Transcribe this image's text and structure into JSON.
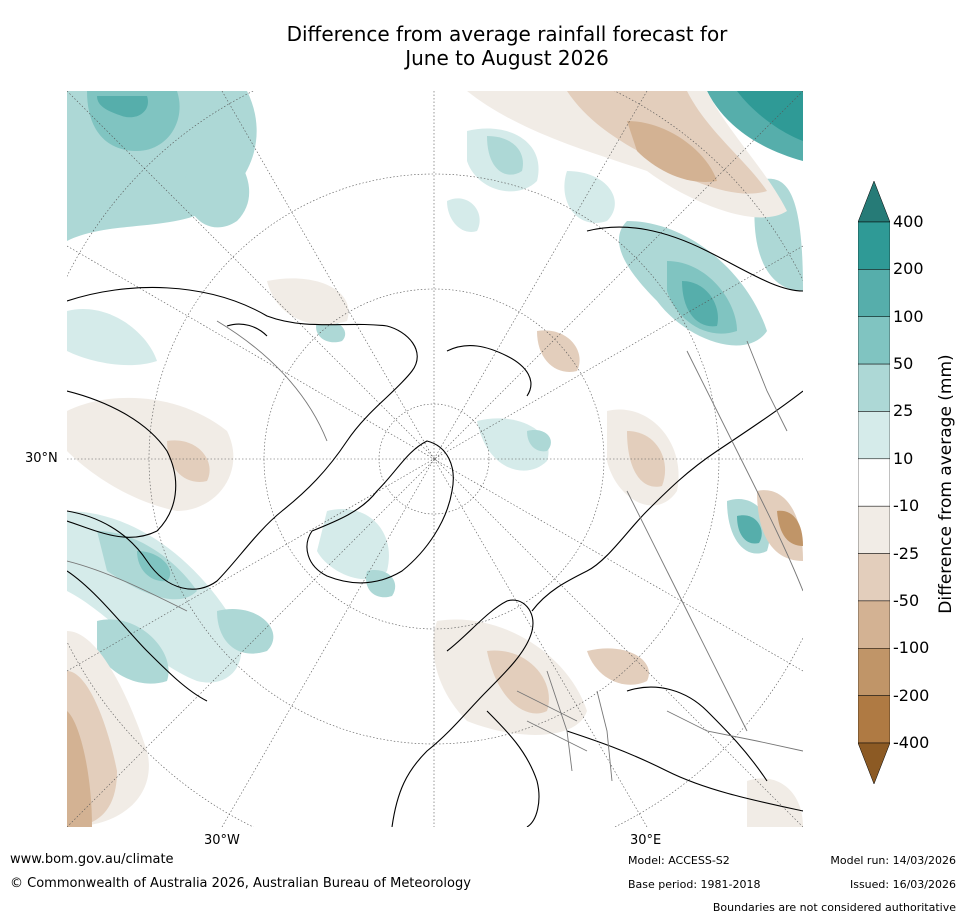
{
  "title": {
    "line1": "Difference from average rainfall forecast for",
    "line2": "June to August 2026"
  },
  "map": {
    "projection": "north-polar-stereographic",
    "lat_labels": [
      "30°N"
    ],
    "lon_labels": [
      "30°W",
      "30°E"
    ],
    "land_outline_color": "#000000",
    "border_color": "#777777",
    "graticule_color": "#555555"
  },
  "colorbar": {
    "label": "Difference from average (mm)",
    "ticks": [
      "400",
      "200",
      "100",
      "50",
      "25",
      "10",
      "-10",
      "-25",
      "-50",
      "-100",
      "-200",
      "-400"
    ],
    "colors_top_to_bottom": [
      "#267b77",
      "#2f9a96",
      "#56aeab",
      "#80c4c1",
      "#add8d6",
      "#d5ebea",
      "#ffffff",
      "#f1ece6",
      "#e3cebc",
      "#d3b293",
      "#c09568",
      "#af7a43",
      "#8c5a24"
    ]
  },
  "footer": {
    "website": "www.bom.gov.au/climate",
    "copyright": "© Commonwealth of Australia 2026, Australian Bureau of Meteorology",
    "model": "Model: ACCESS-S2",
    "base_period": "Base period: 1981-2018",
    "model_run": "Model run: 14/03/2026",
    "issued": "Issued: 16/03/2026",
    "disclaimer": "Boundaries are not considered authoritative"
  }
}
